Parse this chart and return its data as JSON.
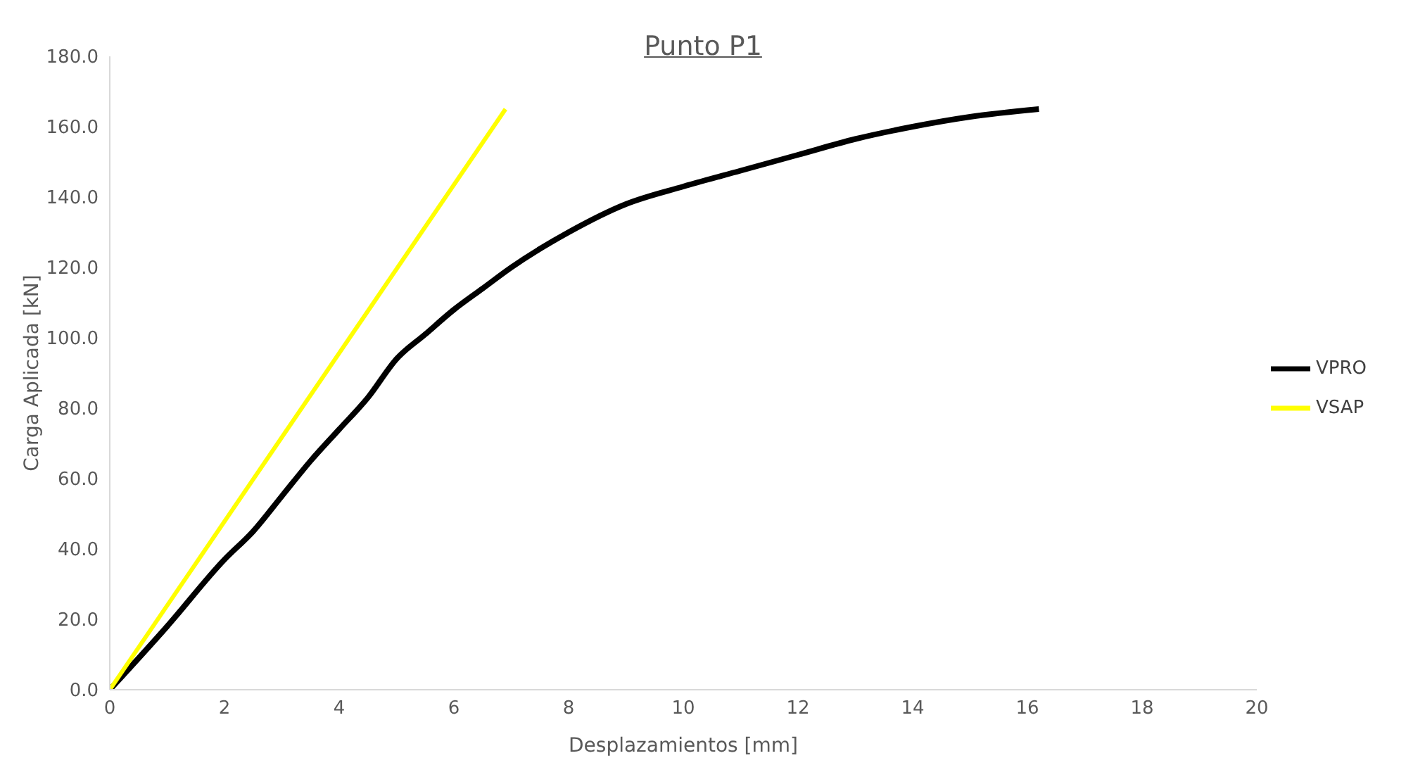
{
  "chart_data": {
    "type": "line",
    "title": "Punto P1",
    "xlabel": "Desplazamientos [mm]",
    "ylabel": "Carga Aplicada [kN]",
    "xlim": [
      0,
      20
    ],
    "xticks": [
      0,
      2,
      4,
      6,
      8,
      10,
      12,
      14,
      16,
      18,
      20
    ],
    "ylim": [
      0,
      180
    ],
    "yticks": [
      {
        "value": 0,
        "label": "0.0"
      },
      {
        "value": 20,
        "label": "20.0"
      },
      {
        "value": 40,
        "label": "40.0"
      },
      {
        "value": 60,
        "label": "60.0"
      },
      {
        "value": 80,
        "label": "80.0"
      },
      {
        "value": 100,
        "label": "100.0"
      },
      {
        "value": 120,
        "label": "120.0"
      },
      {
        "value": 140,
        "label": "140.0"
      },
      {
        "value": 160,
        "label": "160.0"
      },
      {
        "value": 180,
        "label": "180.0"
      }
    ],
    "grid": false,
    "legend": "right",
    "marker": "none",
    "line_style": "solid",
    "series": [
      {
        "name": "VPRO",
        "color": "#000000",
        "x": [
          0,
          1,
          2,
          2.5,
          3,
          3.5,
          4,
          4.5,
          5,
          5.5,
          6,
          6.5,
          7,
          8,
          9,
          10,
          11,
          12,
          13,
          14,
          15,
          16.2
        ],
        "values": [
          0,
          18,
          37,
          45,
          55,
          65,
          74,
          83,
          94,
          101,
          108,
          114,
          120,
          130,
          138,
          143,
          147.5,
          152,
          156.5,
          160,
          162.8,
          165
        ]
      },
      {
        "name": "VSAP",
        "color": "#ffff00",
        "x": [
          0,
          6.9
        ],
        "values": [
          0,
          165
        ]
      }
    ]
  }
}
